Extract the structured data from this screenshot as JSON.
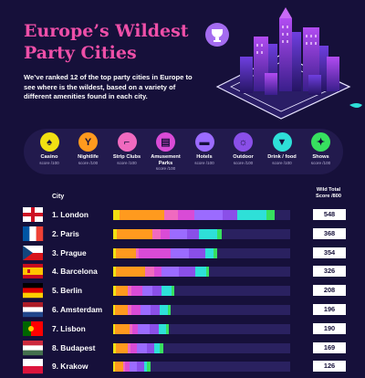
{
  "header": {
    "title_line1": "Europe’s Wildest",
    "title_line2": "Party Cities",
    "intro": "We’ve ranked 12 of the top party cities in Europe to see where is the wildest, based on a variety of different amenities found in each city."
  },
  "legend": [
    {
      "label": "Casino",
      "score": "score /100",
      "color": "#f2e012",
      "icon": "spade-icon",
      "glyph": "♠"
    },
    {
      "label": "Nightlife",
      "score": "score /100",
      "color": "#ff9a1e",
      "icon": "cocktail-icon",
      "glyph": "Y"
    },
    {
      "label": "Strip Clubs",
      "score": "score /100",
      "color": "#f06abf",
      "icon": "heel-icon",
      "glyph": "⌐"
    },
    {
      "label": "Amusement Parks",
      "score": "score /100",
      "color": "#d94bd6",
      "icon": "amusement-icon",
      "glyph": "▤"
    },
    {
      "label": "Hotels",
      "score": "score /100",
      "color": "#9b6bff",
      "icon": "bed-icon",
      "glyph": "▬"
    },
    {
      "label": "Outdoor",
      "score": "score /100",
      "color": "#8a4fe8",
      "icon": "outdoor-icon",
      "glyph": "☼"
    },
    {
      "label": "Drink / food",
      "score": "score /100",
      "color": "#2ee0d8",
      "icon": "drink-icon",
      "glyph": "▼"
    },
    {
      "label": "Shows",
      "score": "score /100",
      "color": "#37e05f",
      "icon": "ticket-icon",
      "glyph": "✦"
    }
  ],
  "columns": {
    "city": "City",
    "score_line1": "Wild Total",
    "score_line2": "Score /800"
  },
  "chart_data": {
    "type": "bar",
    "stacked": true,
    "orientation": "horizontal",
    "xlim": [
      0,
      600
    ],
    "categories": [
      "1. London",
      "2. Paris",
      "3. Prague",
      "4. Barcelona",
      "5. Berlin",
      "6. Amsterdam",
      "7. Lisbon",
      "8. Budapest",
      "9. Krakow"
    ],
    "totals": [
      548,
      368,
      354,
      326,
      208,
      196,
      190,
      169,
      126
    ],
    "series_colors": [
      "#f2e012",
      "#ff9a1e",
      "#f06abf",
      "#d94bd6",
      "#9b6bff",
      "#8a4fe8",
      "#2ee0d8",
      "#37e05f"
    ],
    "segments": [
      [
        22,
        150,
        48,
        55,
        95,
        50,
        100,
        28
      ],
      [
        12,
        120,
        30,
        30,
        60,
        40,
        60,
        16
      ],
      [
        8,
        70,
        8,
        110,
        60,
        58,
        25,
        15
      ],
      [
        8,
        100,
        30,
        25,
        60,
        55,
        38,
        10
      ],
      [
        8,
        40,
        15,
        35,
        35,
        30,
        35,
        10
      ],
      [
        6,
        45,
        12,
        30,
        35,
        30,
        28,
        10
      ],
      [
        6,
        50,
        8,
        20,
        40,
        30,
        26,
        10
      ],
      [
        10,
        40,
        10,
        20,
        35,
        25,
        19,
        10
      ],
      [
        5,
        30,
        6,
        15,
        25,
        25,
        10,
        10
      ]
    ]
  },
  "rows": [
    {
      "flag": "england",
      "name": "1. London",
      "score": "548"
    },
    {
      "flag": "france",
      "name": "2. Paris",
      "score": "368"
    },
    {
      "flag": "czech",
      "name": "3. Prague",
      "score": "354"
    },
    {
      "flag": "spain",
      "name": "4. Barcelona",
      "score": "326"
    },
    {
      "flag": "germany",
      "name": "5. Berlin",
      "score": "208"
    },
    {
      "flag": "netherlands",
      "name": "6. Amsterdam",
      "score": "196"
    },
    {
      "flag": "portugal",
      "name": "7. Lisbon",
      "score": "190"
    },
    {
      "flag": "hungary",
      "name": "8. Budapest",
      "score": "169"
    },
    {
      "flag": "poland",
      "name": "9. Krakow",
      "score": "126"
    }
  ]
}
